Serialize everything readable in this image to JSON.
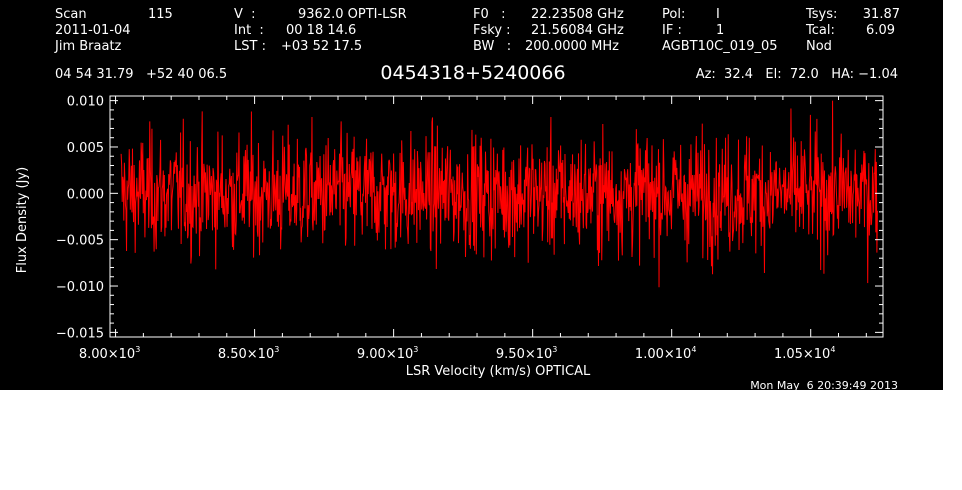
{
  "header": {
    "col1": [
      "Scan",
      "2011-01-04",
      "Jim Braatz"
    ],
    "scan_number": "115",
    "col2_keys": [
      "V  :",
      "Int  :",
      "LST :"
    ],
    "col2_vals": [
      "9362.0 OPTI-LSR",
      "00 18 14.6",
      "+03 52 17.5"
    ],
    "col3_keys": [
      "F0   :",
      "Fsky :",
      "BW   :"
    ],
    "col3_vals": [
      "22.23508 GHz",
      "21.56084 GHz",
      "200.0000 MHz"
    ],
    "col4_keys": [
      "Pol:",
      "IF :",
      "AGBT10C_019_05"
    ],
    "col4_vals": [
      "I",
      "1",
      ""
    ],
    "col5_keys": [
      "Tsys:",
      "Tcal:",
      "Nod"
    ],
    "col5_vals": [
      "31.87",
      "6.09",
      ""
    ],
    "coords": "04 54 31.79   +52 40 06.5",
    "source": "0454318+5240066",
    "azelha": "Az:  32.4   El:  72.0   HA: −1.04",
    "timestamp": "Mon May  6 20:39:49 2013"
  },
  "chart_data": {
    "type": "line",
    "xlabel": "LSR Velocity (km/s) OPTICAL",
    "ylabel": "Flux Density (Jy)",
    "xlim": [
      7980,
      10760
    ],
    "ylim": [
      -0.0155,
      0.0105
    ],
    "xticks": [
      {
        "value": 8000,
        "mant": "8.00×10",
        "exp": "3"
      },
      {
        "value": 8500,
        "mant": "8.50×10",
        "exp": "3"
      },
      {
        "value": 9000,
        "mant": "9.00×10",
        "exp": "3"
      },
      {
        "value": 9500,
        "mant": "9.50×10",
        "exp": "3"
      },
      {
        "value": 10000,
        "mant": "1.00×10",
        "exp": "4"
      },
      {
        "value": 10500,
        "mant": "1.05×10",
        "exp": "4"
      }
    ],
    "yticks": [
      {
        "value": 0.01,
        "label": "0.010"
      },
      {
        "value": 0.005,
        "label": "0.005"
      },
      {
        "value": 0.0,
        "label": "0.000"
      },
      {
        "value": -0.005,
        "label": "−0.005"
      },
      {
        "value": -0.01,
        "label": "−0.010"
      },
      {
        "value": -0.015,
        "label": "−0.015"
      }
    ],
    "series": [
      {
        "color": "#ff0000",
        "x_start": 8020,
        "x_end": 10740,
        "noise_rms": 0.0032,
        "mean": 0.0,
        "n_points": 1400
      }
    ]
  },
  "colors": {
    "background": "#000000",
    "foreground": "#ffffff",
    "trace": "#ff0000"
  }
}
